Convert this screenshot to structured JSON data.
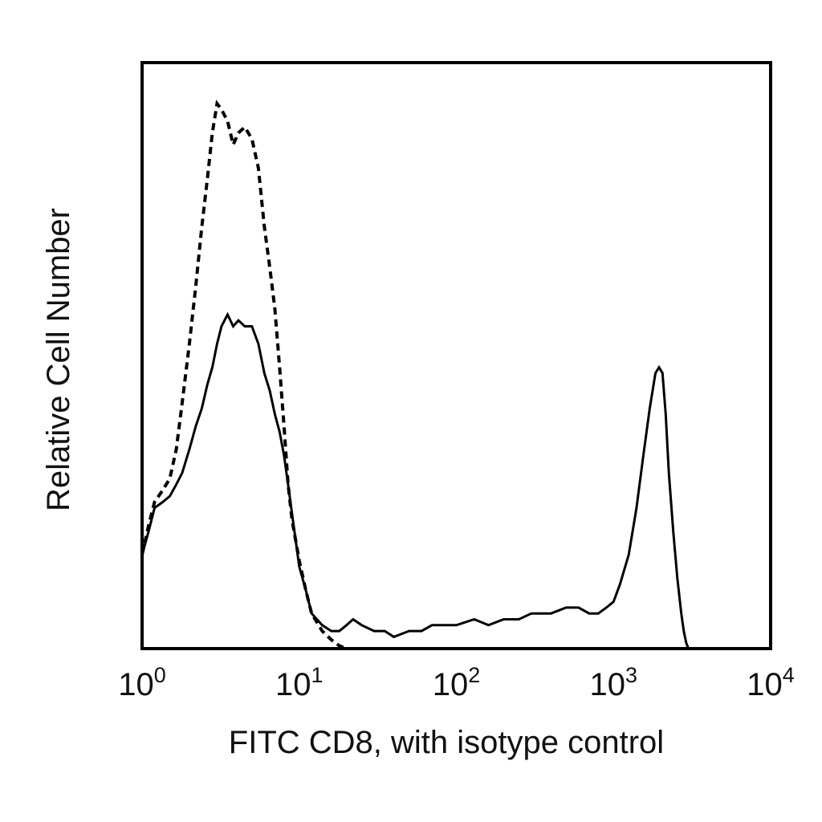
{
  "chart_data": {
    "type": "line",
    "title": "",
    "xlabel": "FITC CD8, with isotype control",
    "ylabel": "Relative Cell Number",
    "xscale": "log",
    "xlim": [
      1,
      10000
    ],
    "ylim": [
      0,
      100
    ],
    "grid": false,
    "legend": "none",
    "x_ticks": [
      {
        "base": "10",
        "exp": "0"
      },
      {
        "base": "10",
        "exp": "1"
      },
      {
        "base": "10",
        "exp": "2"
      },
      {
        "base": "10",
        "exp": "3"
      },
      {
        "base": "10",
        "exp": "4"
      }
    ],
    "series": [
      {
        "style": "solid",
        "x": [
          1,
          1.1,
          1.2,
          1.35,
          1.5,
          1.65,
          1.8,
          2.0,
          2.2,
          2.4,
          2.6,
          2.8,
          3.0,
          3.2,
          3.5,
          3.8,
          4.1,
          4.5,
          5.0,
          5.5,
          6.0,
          6.5,
          7.0,
          7.5,
          8.0,
          8.5,
          9.0,
          10,
          11,
          12,
          14,
          16,
          18,
          20,
          22,
          25,
          30,
          35,
          40,
          50,
          60,
          70,
          80,
          100,
          130,
          160,
          200,
          250,
          300,
          400,
          500,
          600,
          700,
          800,
          900,
          1000,
          1100,
          1250,
          1400,
          1550,
          1700,
          1850,
          1950,
          2050,
          2150,
          2250,
          2400,
          2550,
          2700,
          2800,
          2900,
          3000,
          3500,
          4500,
          6000,
          8000,
          10000
        ],
        "y": [
          16,
          20,
          24,
          25,
          26,
          28,
          30,
          34,
          38,
          41,
          45,
          48,
          52,
          55,
          57,
          55,
          56,
          55,
          55,
          52,
          47,
          44,
          40,
          37,
          33,
          28,
          23,
          14,
          10,
          6,
          4,
          3,
          3,
          4,
          5,
          4,
          3,
          3,
          2,
          3,
          3,
          4,
          4,
          4,
          5,
          4,
          5,
          5,
          6,
          6,
          7,
          7,
          6,
          6,
          7,
          8,
          11,
          16,
          24,
          33,
          41,
          47,
          48,
          47,
          40,
          30,
          20,
          12,
          6,
          3,
          1,
          0,
          0,
          0,
          0,
          0,
          0
        ]
      },
      {
        "style": "dashed",
        "x": [
          1,
          1.1,
          1.2,
          1.35,
          1.5,
          1.65,
          1.8,
          2.0,
          2.2,
          2.4,
          2.6,
          2.8,
          3.0,
          3.2,
          3.5,
          3.8,
          4.1,
          4.5,
          5.0,
          5.5,
          6.0,
          6.5,
          7.0,
          7.5,
          8.0,
          8.5,
          9.0,
          10,
          11,
          12,
          14,
          16,
          18,
          20,
          25,
          30,
          50,
          100,
          1000,
          10000
        ],
        "y": [
          16,
          21,
          25,
          27,
          29,
          34,
          42,
          52,
          62,
          72,
          80,
          88,
          93,
          92,
          90,
          86,
          88,
          89,
          87,
          82,
          72,
          65,
          58,
          48,
          38,
          28,
          22,
          15,
          10,
          6,
          3,
          1.5,
          0.5,
          0,
          0,
          0,
          0,
          0,
          0,
          0
        ]
      }
    ]
  }
}
